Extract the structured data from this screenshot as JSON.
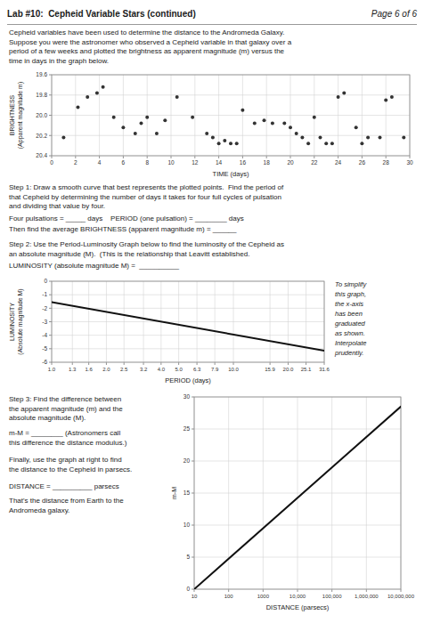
{
  "title": "Lab #10:  Cepheid Variable Stars (continued)",
  "subtitle": "Page 6 of 6",
  "annotations": [
    "Cepheid variables have been used to determine the distance to the Andromeda Galaxy.\nSuppose you were the astronomer who observed a Cepheid variable in that galaxy over a\nperiod of a few weeks and plotted the brightness as apparent magnitude (m) versus the\ntime in days in the graph below.",
    "Step 1: Draw a smooth curve that best represents the plotted points.  Find the period of\nthat Cepheid by determining the number of days it takes for four full cycles of pulsation\nand dividing that value by four.",
    "Four pulsations = _____ days    PERIOD (one pulsation) = ________ days",
    "Then find the average BRIGHTNESS (apparent magnitude m) = ______",
    "Step 2: Use the Period-Luminosity Graph below to find the luminosity of the Cepheid as\nan absolute magnitude (M).  (This is the relationship that Leavitt established.",
    "LUMINOSITY (absolute magnitude M) =  __________",
    "Step 3: Find the difference between\nthe apparent magnitude (m) and the\nabsolute magnitude (M).",
    "m-M = ________ (Astronomers call\nthis difference the distance modulus.)",
    "Finally, use the graph at right to find\nthe distance to the Cepheid in parsecs.",
    "DISTANCE = __________ parsecs",
    "That's the distance from Earth to the\nAndromeda galaxy."
  ],
  "chart_data": [
    {
      "type": "scatter",
      "xlabel": "TIME (days)",
      "ylabel": "BRIGHTNESS\n(Apparent magnitude m)",
      "x": [
        1.0,
        2.2,
        3.0,
        3.8,
        4.3,
        5.2,
        6.0,
        7.0,
        7.5,
        8.0,
        8.8,
        9.5,
        10.5,
        11.8,
        13.0,
        13.5,
        14.0,
        14.5,
        15.0,
        15.5,
        16.0,
        17.0,
        17.8,
        18.5,
        19.5,
        20.0,
        20.5,
        21.0,
        21.5,
        22.0,
        22.5,
        23.0,
        23.5,
        24.0,
        24.5,
        25.5,
        26.0,
        26.5,
        27.5,
        28.0,
        28.5,
        29.5
      ],
      "values": [
        20.22,
        19.92,
        19.82,
        19.78,
        19.72,
        20.02,
        20.12,
        20.18,
        20.08,
        20.02,
        20.18,
        20.05,
        19.82,
        20.02,
        20.18,
        20.22,
        20.28,
        20.25,
        20.28,
        20.28,
        19.95,
        20.08,
        20.05,
        20.08,
        20.08,
        20.12,
        20.18,
        20.22,
        20.28,
        20.02,
        20.22,
        20.28,
        20.28,
        19.82,
        19.78,
        20.12,
        20.28,
        20.22,
        20.22,
        19.85,
        19.82,
        20.22
      ],
      "color": "#333333",
      "marker": "circle",
      "xlim": [
        0,
        30
      ],
      "ylim": [
        20.4,
        19.6
      ],
      "xticks": [
        0,
        2,
        4,
        6,
        8,
        10,
        12,
        14,
        16,
        18,
        20,
        22,
        24,
        26,
        28,
        30
      ],
      "yticks": [
        19.6,
        19.8,
        {
          "value": 20.0,
          "label": "20.0"
        },
        20.2,
        20.4
      ],
      "grid": true
    },
    {
      "type": "line",
      "xlabel": "PERIOD (days)",
      "ylabel": "LUMINOSITY\n(Absolute magnitude M)",
      "x": [
        1.0,
        31.6
      ],
      "values": [
        -1.55,
        -5.15
      ],
      "color": "#111111",
      "log": "x",
      "xlim": [
        1.0,
        31.6
      ],
      "ylim": [
        -6.0,
        0.0
      ],
      "xticks": [
        {
          "value": 1.0,
          "label": "1.0"
        },
        1.3,
        1.6,
        {
          "value": 2.0,
          "label": "2.0"
        },
        2.5,
        3.2,
        {
          "value": 4.0,
          "label": "4.0"
        },
        {
          "value": 5.0,
          "label": "5.0"
        },
        6.3,
        7.9,
        {
          "value": 10.0,
          "label": "10.0"
        },
        15.9,
        {
          "value": 20.0,
          "label": "20.0"
        },
        25.1,
        31.6
      ],
      "yticks": [
        -6.0,
        -5.0,
        -4.0,
        -3.0,
        -2.0,
        -1.0,
        0.0
      ],
      "grid": true,
      "annotations": [
        "To simplify\nthis graph,\nthe x-axis\nhas been\ngraduated\nas shown.\nInterpolate\nprudently."
      ]
    },
    {
      "type": "line",
      "xlabel": "DISTANCE (parsecs)",
      "ylabel": "m-M",
      "x": [
        10,
        10000000
      ],
      "values": [
        0.0,
        28.5
      ],
      "color": "#111111",
      "log": "x",
      "xlim": [
        10,
        10000000
      ],
      "ylim": [
        0,
        30
      ],
      "xticks": [
        10,
        100,
        1000,
        {
          "value": 10000,
          "label": "10,000"
        },
        {
          "value": 100000,
          "label": "100,000"
        },
        {
          "value": 1000000,
          "label": "1,000,000"
        },
        {
          "value": 10000000,
          "label": "10,000,000"
        }
      ],
      "yticks": [
        0,
        5,
        10,
        15,
        20,
        25,
        30
      ],
      "grid": true
    }
  ]
}
